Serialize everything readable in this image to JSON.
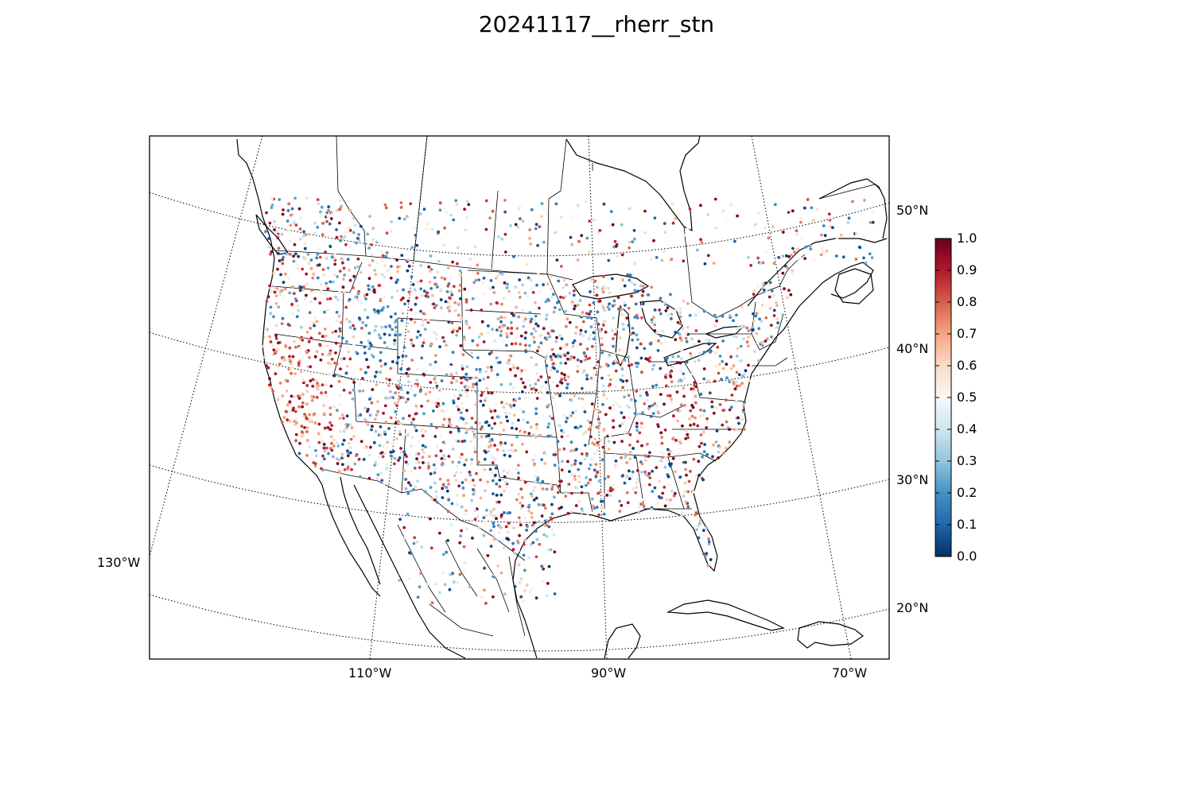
{
  "title": "20241117__rherr_stn",
  "map": {
    "projection": "lambert-conformal",
    "parallels": [
      {
        "lat": 50,
        "label": "50°N"
      },
      {
        "lat": 40,
        "label": "40°N"
      },
      {
        "lat": 30,
        "label": "30°N"
      },
      {
        "lat": 20,
        "label": "20°N"
      }
    ],
    "meridians": [
      {
        "lon": -130,
        "label": "130°W"
      },
      {
        "lon": -110,
        "label": "110°W"
      },
      {
        "lon": -90,
        "label": "90°W"
      },
      {
        "lon": -70,
        "label": "70°W"
      }
    ],
    "graticule_style": "dotted",
    "point_marker": "circle"
  },
  "colorbar": {
    "colormap": "RdBu_r",
    "vmin": 0.0,
    "vmax": 1.0,
    "ticks": [
      "0.0",
      "0.1",
      "0.2",
      "0.3",
      "0.4",
      "0.5",
      "0.6",
      "0.7",
      "0.8",
      "0.9",
      "1.0"
    ],
    "colors": [
      "#053061",
      "#2166ac",
      "#4393c3",
      "#92c5de",
      "#d1e5f0",
      "#f7f7f7",
      "#fddbc7",
      "#f4a582",
      "#d6604d",
      "#b2182b",
      "#67001f"
    ]
  }
}
